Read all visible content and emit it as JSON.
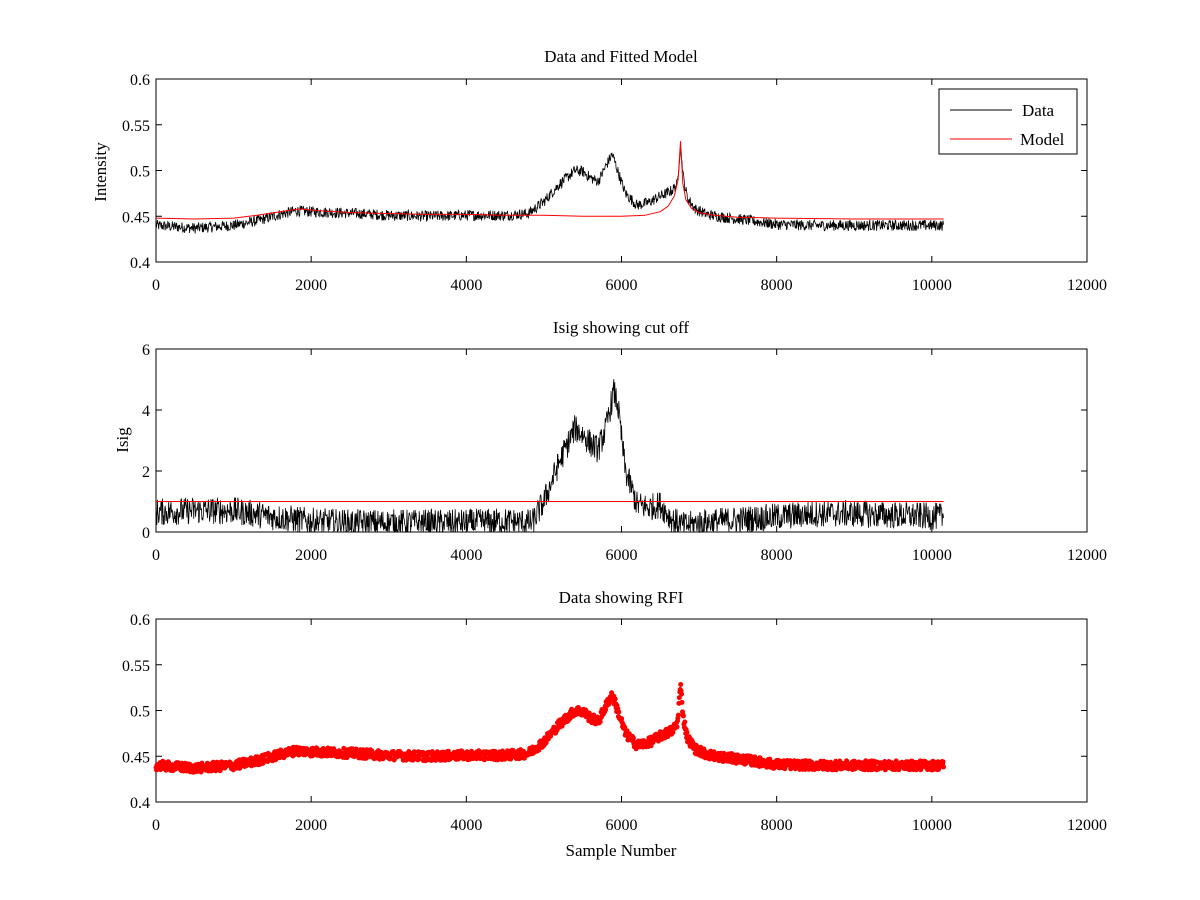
{
  "chart_data": [
    {
      "type": "line",
      "title": "Data and Fitted Model",
      "xlabel": "",
      "ylabel": "Intensity",
      "xlim": [
        0,
        12000
      ],
      "ylim": [
        0.4,
        0.6
      ],
      "xticks": [
        0,
        2000,
        4000,
        6000,
        8000,
        10000,
        12000
      ],
      "yticks": [
        0.4,
        0.45,
        0.5,
        0.55,
        0.6
      ],
      "ytick_labels": [
        "0.4",
        "0.45",
        "0.5",
        "0.55",
        "0.6"
      ],
      "legend": {
        "position": "top-right",
        "entries": [
          "Data",
          "Model"
        ]
      },
      "series": [
        {
          "name": "Data",
          "color": "#000000",
          "noise": 0.006,
          "x": [
            0,
            500,
            1000,
            1300,
            1600,
            1800,
            2000,
            2300,
            2600,
            3000,
            3500,
            4000,
            4500,
            4800,
            5000,
            5200,
            5400,
            5500,
            5600,
            5700,
            5800,
            5880,
            5950,
            6050,
            6200,
            6350,
            6500,
            6650,
            6720,
            6760,
            6800,
            6850,
            6950,
            7100,
            7300,
            7600,
            8000,
            8500,
            9000,
            9500,
            10150
          ],
          "y": [
            0.44,
            0.437,
            0.44,
            0.445,
            0.452,
            0.456,
            0.455,
            0.454,
            0.453,
            0.451,
            0.45,
            0.451,
            0.451,
            0.453,
            0.466,
            0.485,
            0.5,
            0.499,
            0.492,
            0.488,
            0.505,
            0.518,
            0.5,
            0.475,
            0.462,
            0.465,
            0.472,
            0.478,
            0.485,
            0.528,
            0.49,
            0.47,
            0.458,
            0.452,
            0.449,
            0.446,
            0.441,
            0.44,
            0.44,
            0.44,
            0.44
          ]
        },
        {
          "name": "Model",
          "color": "#ff0000",
          "noise": 0,
          "x": [
            0,
            500,
            1000,
            1300,
            1600,
            1850,
            2100,
            2500,
            3000,
            3500,
            4000,
            4500,
            5000,
            5500,
            6000,
            6300,
            6500,
            6600,
            6680,
            6730,
            6760,
            6790,
            6830,
            6900,
            7000,
            7200,
            7500,
            8000,
            9000,
            10150
          ],
          "y": [
            0.448,
            0.447,
            0.448,
            0.451,
            0.455,
            0.458,
            0.456,
            0.454,
            0.453,
            0.452,
            0.452,
            0.451,
            0.451,
            0.45,
            0.45,
            0.451,
            0.455,
            0.461,
            0.472,
            0.49,
            0.532,
            0.486,
            0.468,
            0.459,
            0.454,
            0.451,
            0.449,
            0.448,
            0.447,
            0.447
          ]
        }
      ]
    },
    {
      "type": "line",
      "title": "Isig showing cut off",
      "xlabel": "",
      "ylabel": "Isig",
      "xlim": [
        0,
        12000
      ],
      "ylim": [
        0,
        6
      ],
      "xticks": [
        0,
        2000,
        4000,
        6000,
        8000,
        10000,
        12000
      ],
      "yticks": [
        0,
        2,
        4,
        6
      ],
      "ytick_labels": [
        "0",
        "2",
        "4",
        "6"
      ],
      "series": [
        {
          "name": "Isig",
          "color": "#000000",
          "noise": 0.45,
          "x": [
            0,
            500,
            1000,
            1500,
            2000,
            2500,
            3000,
            3500,
            4000,
            4500,
            4850,
            5000,
            5200,
            5400,
            5500,
            5600,
            5700,
            5800,
            5900,
            5950,
            6050,
            6200,
            6350,
            6500,
            6650,
            6800,
            7000,
            7500,
            8000,
            8500,
            9000,
            9500,
            10150
          ],
          "y": [
            0.65,
            0.7,
            0.7,
            0.5,
            0.35,
            0.3,
            0.3,
            0.3,
            0.3,
            0.35,
            0.3,
            1.0,
            2.3,
            3.4,
            3.2,
            2.9,
            2.7,
            3.4,
            4.6,
            4.2,
            2.0,
            0.9,
            0.8,
            0.9,
            0.4,
            0.2,
            0.3,
            0.4,
            0.5,
            0.6,
            0.6,
            0.55,
            0.5
          ]
        },
        {
          "name": "Cut off",
          "color": "#ff0000",
          "noise": 0,
          "x": [
            0,
            10150
          ],
          "y": [
            1.0,
            1.0
          ]
        }
      ]
    },
    {
      "type": "scatter",
      "title": "Data showing RFI",
      "xlabel": "Sample Number",
      "ylabel": "",
      "xlim": [
        0,
        12000
      ],
      "ylim": [
        0.4,
        0.6
      ],
      "xticks": [
        0,
        2000,
        4000,
        6000,
        8000,
        10000,
        12000
      ],
      "yticks": [
        0.4,
        0.45,
        0.5,
        0.55,
        0.6
      ],
      "ytick_labels": [
        "0.4",
        "0.45",
        "0.5",
        "0.55",
        "0.6"
      ],
      "series": [
        {
          "name": "RFI",
          "color": "#ff0000",
          "noise": 0.005,
          "marker": "dot",
          "x": [
            0,
            500,
            1000,
            1300,
            1600,
            1800,
            2000,
            2300,
            2600,
            3000,
            3500,
            4000,
            4500,
            4800,
            5000,
            5200,
            5400,
            5500,
            5600,
            5700,
            5800,
            5880,
            5950,
            6050,
            6200,
            6350,
            6500,
            6650,
            6720,
            6760,
            6800,
            6850,
            6950,
            7100,
            7300,
            7600,
            8000,
            8500,
            9000,
            9500,
            10150
          ],
          "y": [
            0.44,
            0.437,
            0.44,
            0.445,
            0.452,
            0.456,
            0.455,
            0.454,
            0.453,
            0.451,
            0.45,
            0.451,
            0.451,
            0.453,
            0.466,
            0.485,
            0.5,
            0.499,
            0.492,
            0.488,
            0.505,
            0.518,
            0.5,
            0.475,
            0.462,
            0.465,
            0.472,
            0.478,
            0.485,
            0.528,
            0.49,
            0.47,
            0.458,
            0.452,
            0.449,
            0.446,
            0.441,
            0.44,
            0.44,
            0.44,
            0.44
          ]
        }
      ]
    }
  ]
}
